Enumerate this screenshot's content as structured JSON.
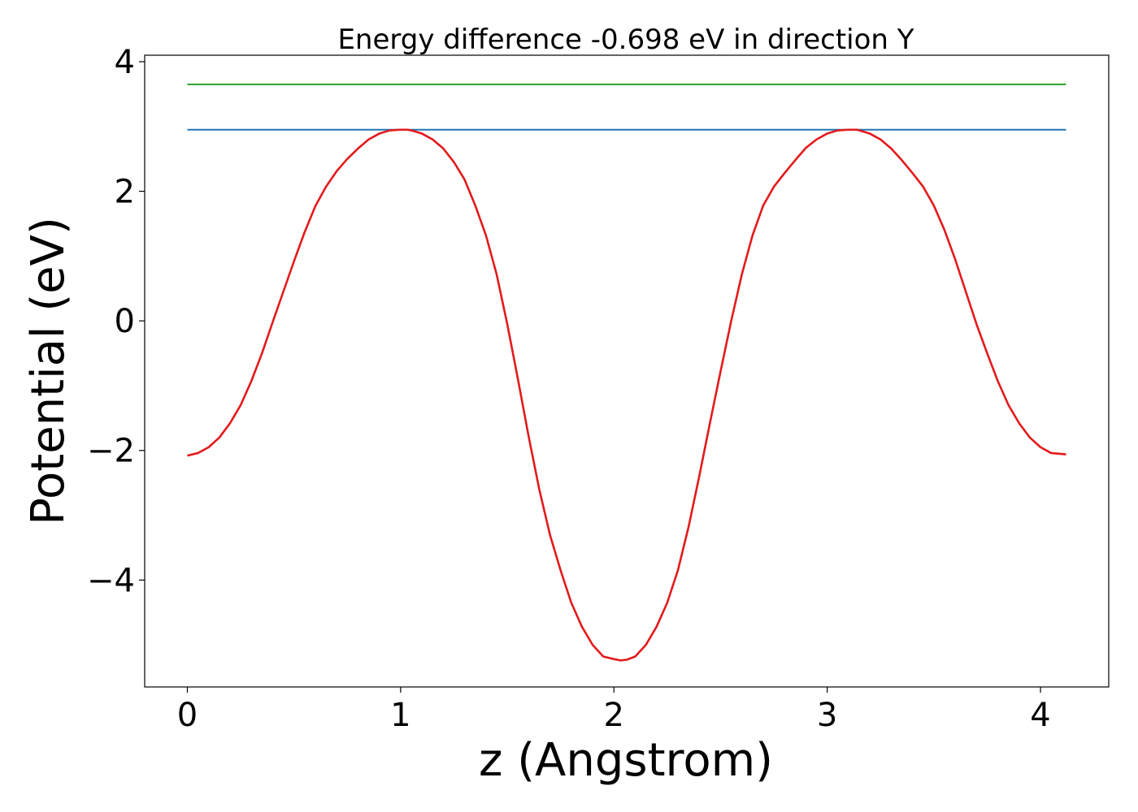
{
  "chart_data": {
    "type": "line",
    "title": "Energy difference -0.698 eV in direction Y",
    "xlabel": "z (Angstrom)",
    "ylabel": "Potential (eV)",
    "xlim": [
      -0.2,
      4.32
    ],
    "ylim": [
      -5.65,
      4.1
    ],
    "grid": false,
    "xticks": [
      {
        "value": 0,
        "label": "0"
      },
      {
        "value": 1,
        "label": "1"
      },
      {
        "value": 2,
        "label": "2"
      },
      {
        "value": 3,
        "label": "3"
      },
      {
        "value": 4,
        "label": "4"
      }
    ],
    "yticks": [
      {
        "value": -4,
        "label": "−4"
      },
      {
        "value": -2,
        "label": "−2"
      },
      {
        "value": 0,
        "label": "0"
      },
      {
        "value": 2,
        "label": "2"
      },
      {
        "value": 4,
        "label": "4"
      }
    ],
    "series": [
      {
        "color": "#2ca02c",
        "x": [
          0.0,
          4.12
        ],
        "y": [
          3.65,
          3.65
        ]
      },
      {
        "color": "#1f77b4",
        "x": [
          0.0,
          4.12
        ],
        "y": [
          2.95,
          2.95
        ]
      },
      {
        "color": "#e31a1c",
        "x": [
          0.0,
          0.05,
          0.1,
          0.15,
          0.2,
          0.25,
          0.3,
          0.35,
          0.4,
          0.45,
          0.5,
          0.55,
          0.6,
          0.65,
          0.7,
          0.75,
          0.8,
          0.85,
          0.9,
          0.95,
          1.0,
          1.03,
          1.05,
          1.1,
          1.15,
          1.2,
          1.25,
          1.3,
          1.35,
          1.4,
          1.45,
          1.5,
          1.55,
          1.6,
          1.65,
          1.7,
          1.75,
          1.8,
          1.85,
          1.9,
          1.95,
          2.0,
          2.03,
          2.06,
          2.1,
          2.15,
          2.2,
          2.25,
          2.3,
          2.35,
          2.4,
          2.45,
          2.5,
          2.55,
          2.6,
          2.65,
          2.7,
          2.75,
          2.8,
          2.85,
          2.9,
          2.95,
          3.0,
          3.05,
          3.1,
          3.14,
          3.2,
          3.25,
          3.3,
          3.35,
          3.4,
          3.45,
          3.5,
          3.55,
          3.6,
          3.65,
          3.7,
          3.75,
          3.8,
          3.85,
          3.9,
          3.95,
          4.0,
          4.05,
          4.12
        ],
        "y": [
          -2.08,
          -2.04,
          -1.95,
          -1.8,
          -1.58,
          -1.3,
          -0.93,
          -0.5,
          -0.02,
          0.45,
          0.92,
          1.37,
          1.77,
          2.07,
          2.31,
          2.5,
          2.66,
          2.8,
          2.89,
          2.94,
          2.95,
          2.95,
          2.94,
          2.89,
          2.8,
          2.66,
          2.45,
          2.18,
          1.78,
          1.32,
          0.72,
          -0.05,
          -0.9,
          -1.78,
          -2.6,
          -3.3,
          -3.85,
          -4.35,
          -4.72,
          -5.0,
          -5.18,
          -5.22,
          -5.24,
          -5.23,
          -5.18,
          -5.0,
          -4.72,
          -4.35,
          -3.85,
          -3.18,
          -2.4,
          -1.58,
          -0.78,
          0.0,
          0.72,
          1.32,
          1.78,
          2.07,
          2.28,
          2.48,
          2.67,
          2.8,
          2.89,
          2.94,
          2.95,
          2.95,
          2.89,
          2.8,
          2.66,
          2.48,
          2.28,
          2.07,
          1.78,
          1.4,
          0.95,
          0.45,
          -0.05,
          -0.5,
          -0.93,
          -1.3,
          -1.58,
          -1.8,
          -1.95,
          -2.04,
          -2.06
        ]
      }
    ]
  }
}
